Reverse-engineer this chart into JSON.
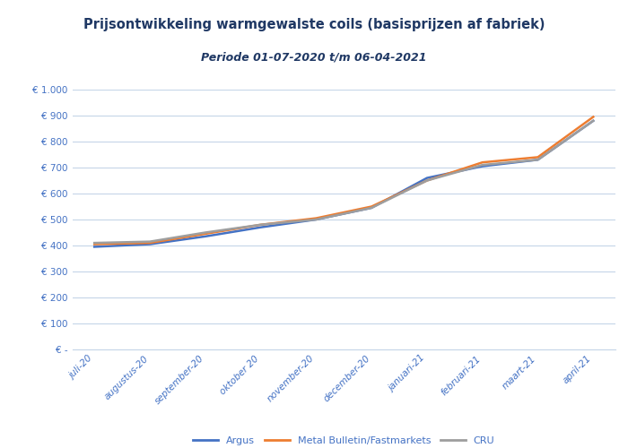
{
  "title_line1": "Prijsontwikkeling warmgewalste coils (basisprijzen af fabriek)",
  "title_line2": "Periode 01-07-2020 t/m 06-04-2021",
  "x_labels": [
    "juli-20",
    "augustus-20",
    "september-20",
    "oktober 20",
    "november-20",
    "december-20",
    "januari-21",
    "februari-21",
    "maart-21",
    "april-21"
  ],
  "argus": [
    395,
    405,
    435,
    470,
    500,
    545,
    660,
    705,
    730,
    880
  ],
  "metal_bulletin": [
    405,
    410,
    445,
    480,
    505,
    550,
    650,
    720,
    740,
    895
  ],
  "cru": [
    410,
    415,
    450,
    480,
    500,
    545,
    650,
    710,
    730,
    880
  ],
  "color_argus": "#4472C4",
  "color_metal_bulletin": "#ED7D31",
  "color_cru": "#9E9E9E",
  "legend_labels": [
    "Argus",
    "Metal Bulletin/Fastmarkets",
    "CRU"
  ],
  "y_min": 0,
  "y_max": 1000,
  "y_step": 100,
  "background_color": "#FFFFFF",
  "grid_color": "#C5D5E8",
  "title_color": "#1F3864",
  "axis_label_color": "#4472C4",
  "line_width": 1.8
}
